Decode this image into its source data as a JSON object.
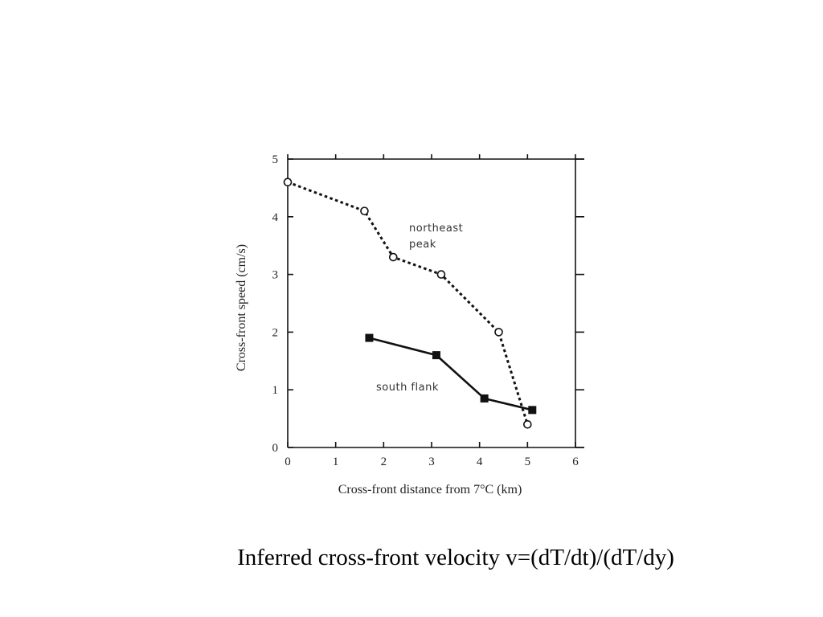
{
  "caption": "Inferred cross-front velocity v=(dT/dt)/(dT/dy)",
  "chart_data": {
    "type": "line",
    "title": "",
    "xlabel": "Cross-front distance from 7°C (km)",
    "ylabel": "Cross-front speed (cm/s)",
    "xlim": [
      0,
      6
    ],
    "ylim": [
      0,
      5
    ],
    "xticks": [
      0,
      1,
      2,
      3,
      4,
      5,
      6
    ],
    "yticks": [
      0,
      1,
      2,
      3,
      4,
      5
    ],
    "grid": false,
    "annotations": [
      {
        "text": "northeast",
        "series": "northeast peak"
      },
      {
        "text": "peak",
        "series": "northeast peak"
      },
      {
        "text": "south flank",
        "series": "south flank"
      }
    ],
    "series": [
      {
        "name": "northeast peak",
        "line_style": "dotted",
        "marker": "open-circle",
        "color": "#111111",
        "x": [
          0.0,
          1.6,
          2.2,
          3.2,
          4.4,
          5.0
        ],
        "y": [
          4.6,
          4.1,
          3.3,
          3.0,
          2.0,
          0.4
        ]
      },
      {
        "name": "south flank",
        "line_style": "solid",
        "marker": "filled-square",
        "color": "#111111",
        "x": [
          1.7,
          3.1,
          4.1,
          5.1
        ],
        "y": [
          1.9,
          1.6,
          0.85,
          0.65
        ]
      }
    ]
  }
}
